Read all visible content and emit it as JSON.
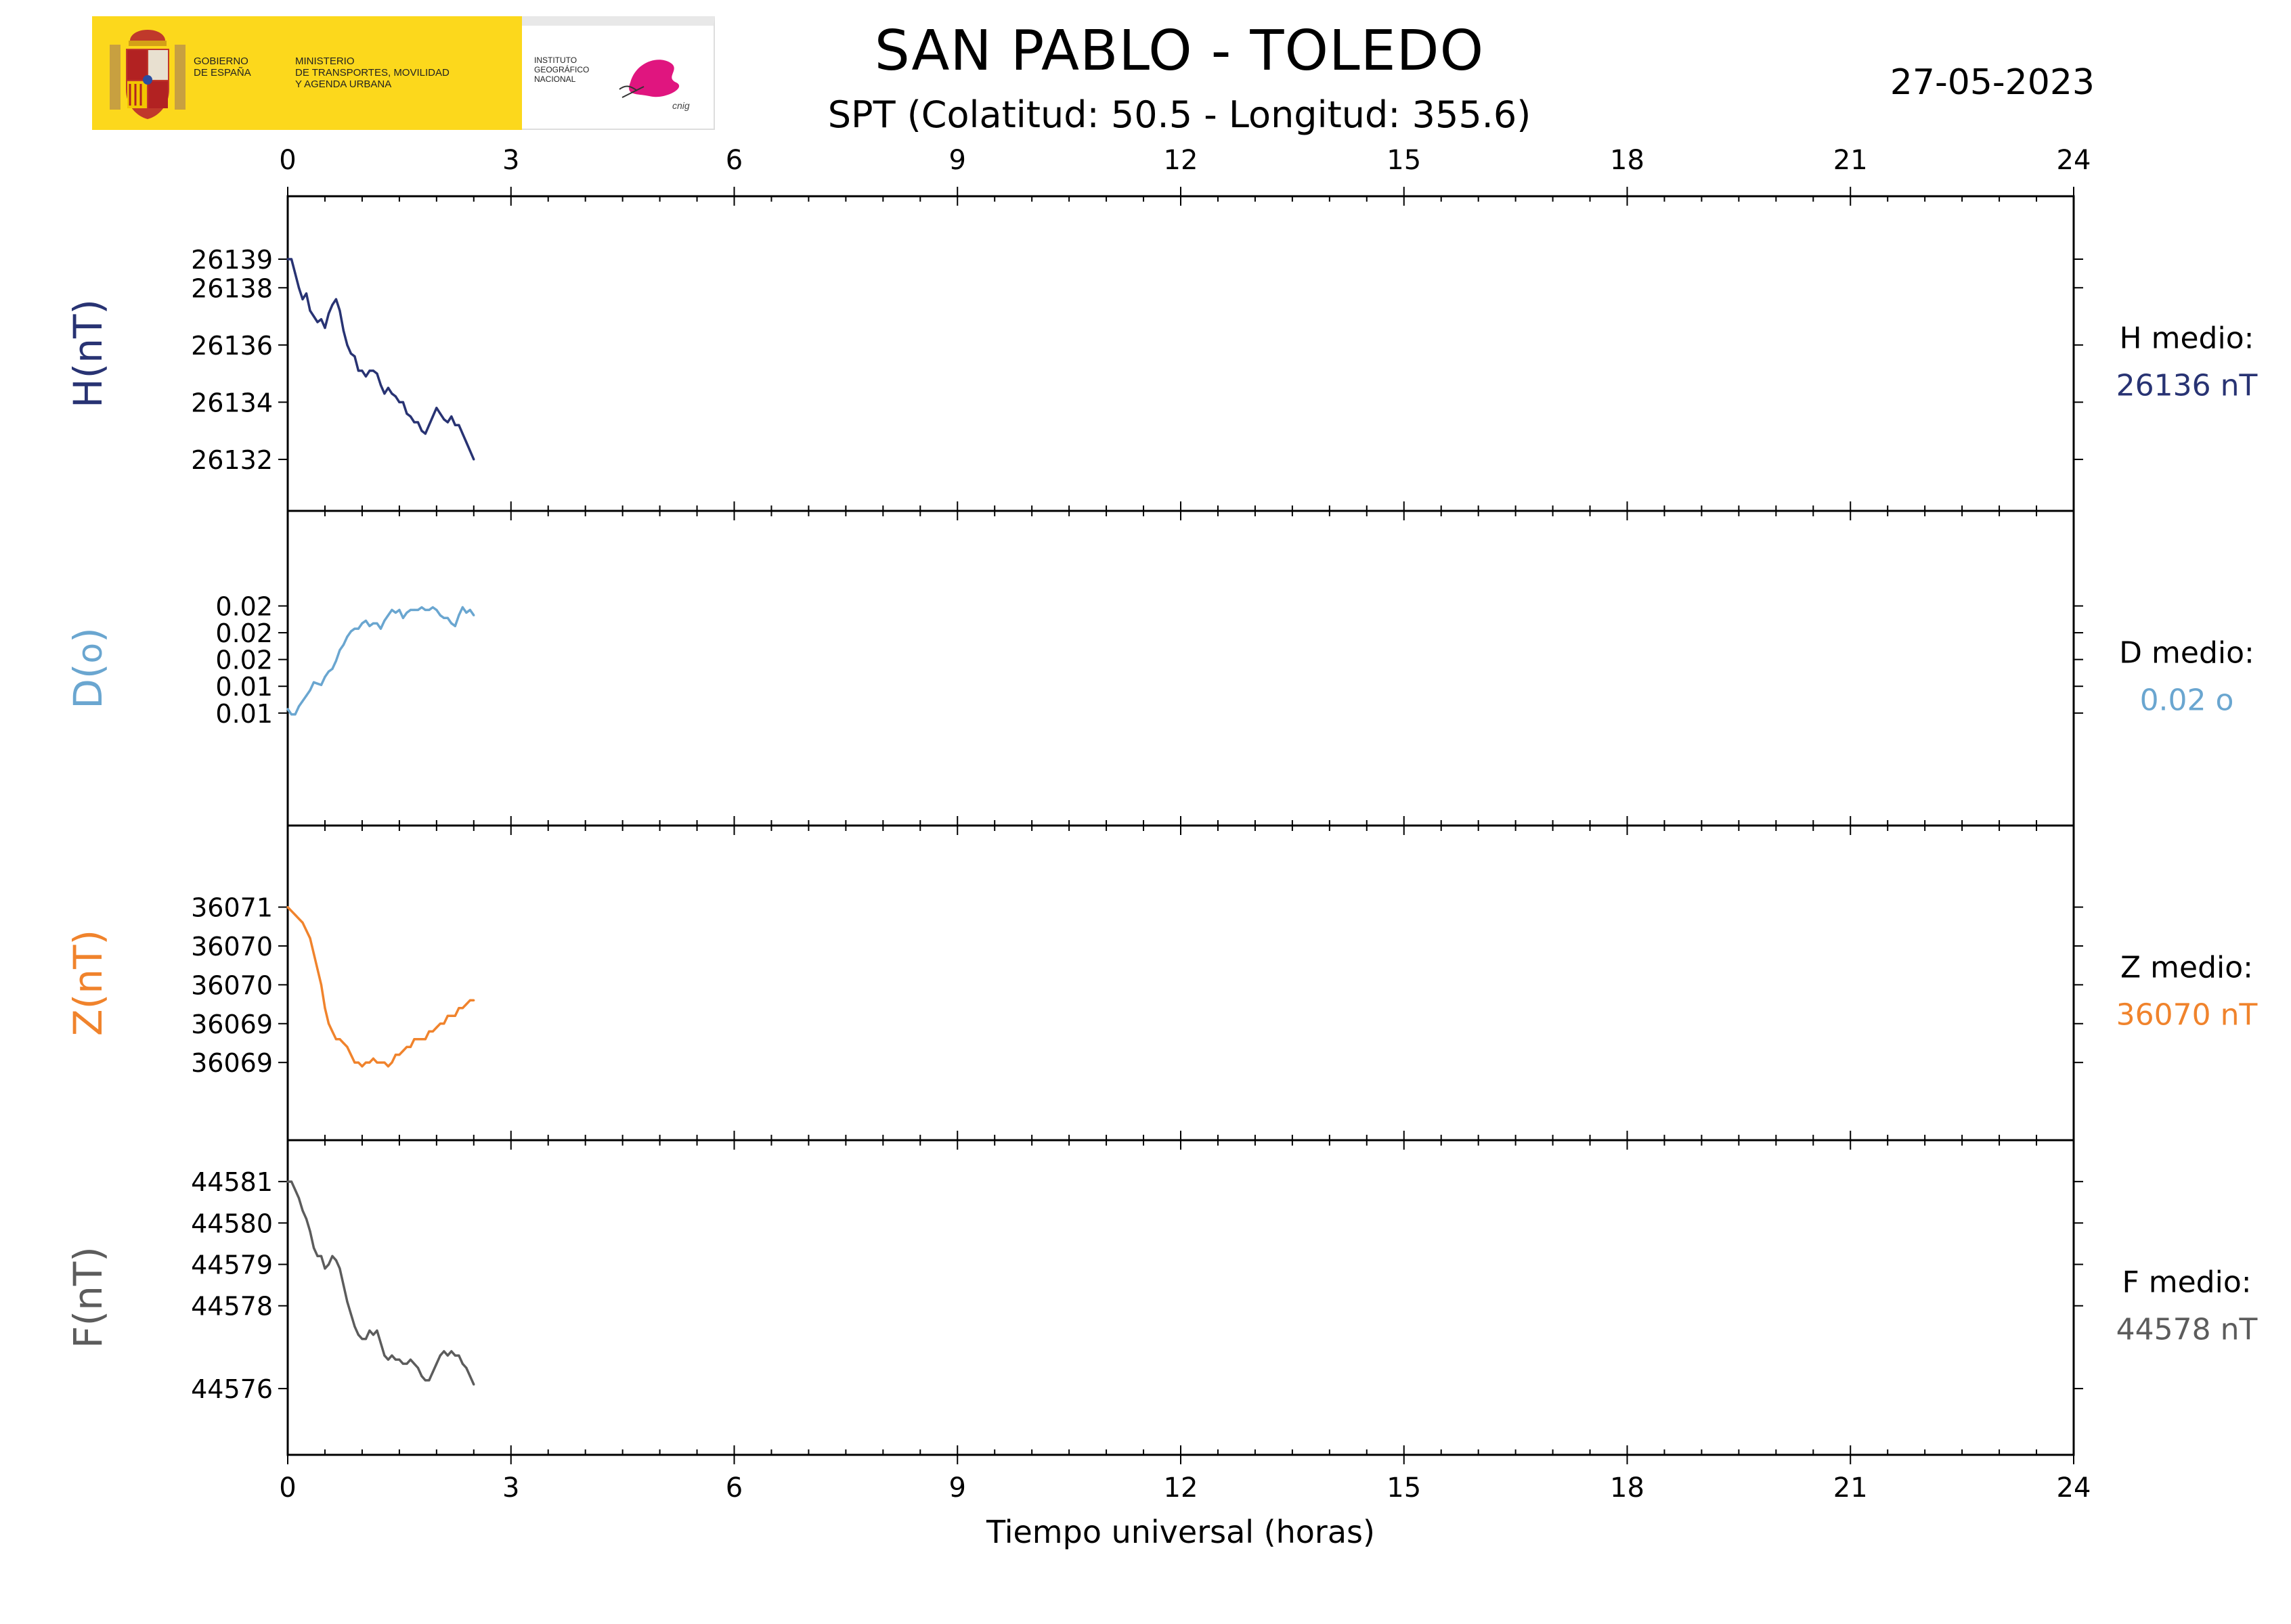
{
  "header": {
    "title": "SAN PABLO - TOLEDO",
    "subtitle": "SPT (Colatitud: 50.5 - Longitud: 355.6)",
    "date": "27-05-2023"
  },
  "logo": {
    "gov_text": "GOBIERNO\nDE ESPAÑA",
    "ministry_text": "MINISTERIO\nDE TRANSPORTES, MOVILIDAD\nY AGENDA URBANA",
    "institute_text": "INSTITUTO\nGEOGRÁFICO\nNACIONAL",
    "brand_text": "cnig"
  },
  "chart_data": {
    "type": "line",
    "x_axis": {
      "label": "Tiempo universal (horas)",
      "range": [
        0,
        24
      ],
      "ticks": [
        0,
        3,
        6,
        9,
        12,
        15,
        18,
        21,
        24
      ],
      "tick_labels": [
        "0",
        "3",
        "6",
        "9",
        "12",
        "15",
        "18",
        "21",
        "24"
      ]
    },
    "x": [
      0,
      0.05,
      0.1,
      0.15,
      0.2,
      0.25,
      0.3,
      0.35,
      0.4,
      0.45,
      0.5,
      0.55,
      0.6,
      0.65,
      0.7,
      0.75,
      0.8,
      0.85,
      0.9,
      0.95,
      1.0,
      1.05,
      1.1,
      1.15,
      1.2,
      1.25,
      1.3,
      1.35,
      1.4,
      1.45,
      1.5,
      1.55,
      1.6,
      1.65,
      1.7,
      1.75,
      1.8,
      1.85,
      1.9,
      1.95,
      2.0,
      2.05,
      2.1,
      2.15,
      2.2,
      2.25,
      2.3,
      2.35,
      2.4,
      2.45,
      2.5
    ],
    "panels": [
      {
        "id": "H",
        "ylabel": "H(nT)",
        "color": "#283373",
        "ylim": [
          26130.2,
          26141.2
        ],
        "yticks": [
          26132,
          26134,
          26136,
          26138,
          26139
        ],
        "ytick_labels": [
          "26132",
          "26134",
          "26136",
          "26138",
          "26139"
        ],
        "mean_label": "H medio:",
        "mean_value": "26136 nT",
        "values": [
          26139.0,
          26139.0,
          26138.5,
          26138.0,
          26137.6,
          26137.8,
          26137.2,
          26137.0,
          26136.8,
          26136.9,
          26136.6,
          26137.1,
          26137.4,
          26137.6,
          26137.2,
          26136.5,
          26136.0,
          26135.7,
          26135.6,
          26135.1,
          26135.1,
          26134.9,
          26135.1,
          26135.1,
          26135.0,
          26134.6,
          26134.3,
          26134.5,
          26134.3,
          26134.2,
          26134.0,
          26134.0,
          26133.6,
          26133.5,
          26133.3,
          26133.3,
          26133.0,
          26132.9,
          26133.2,
          26133.5,
          26133.8,
          26133.6,
          26133.4,
          26133.3,
          26133.5,
          26133.2,
          26133.2,
          26132.9,
          26132.6,
          26132.3,
          26132.0
        ]
      },
      {
        "id": "D",
        "ylabel": "D(o)",
        "color": "#6aa6d0",
        "ylim": [
          0.0035,
          0.027
        ],
        "yticks": [
          0.0119,
          0.0139,
          0.0159,
          0.0179,
          0.0199
        ],
        "ytick_labels": [
          "0.01",
          "0.01",
          "0.02",
          "0.02",
          "0.02"
        ],
        "mean_label": "D medio:",
        "mean_value": "0.02 o",
        "values": [
          0.0122,
          0.0118,
          0.0118,
          0.0124,
          0.0128,
          0.0132,
          0.0136,
          0.0142,
          0.0141,
          0.014,
          0.0146,
          0.015,
          0.0152,
          0.0158,
          0.0166,
          0.017,
          0.0176,
          0.018,
          0.0182,
          0.0182,
          0.0186,
          0.0188,
          0.0184,
          0.0186,
          0.0186,
          0.0182,
          0.0188,
          0.0192,
          0.0196,
          0.0194,
          0.0196,
          0.019,
          0.0194,
          0.0196,
          0.0196,
          0.0196,
          0.0198,
          0.0196,
          0.0196,
          0.0198,
          0.0196,
          0.0192,
          0.019,
          0.019,
          0.0186,
          0.0184,
          0.0192,
          0.0198,
          0.0194,
          0.0196,
          0.0192
        ]
      },
      {
        "id": "Z",
        "ylabel": "Z(nT)",
        "color": "#f0832c",
        "ylim": [
          36067.6,
          36071.65
        ],
        "yticks": [
          36068.6,
          36069.1,
          36069.6,
          36070.1,
          36070.6
        ],
        "ytick_labels": [
          "36069",
          "36069",
          "36070",
          "36070",
          "36071"
        ],
        "mean_label": "Z medio:",
        "mean_value": "36070 nT",
        "values": [
          36070.6,
          36070.55,
          36070.5,
          36070.45,
          36070.4,
          36070.3,
          36070.2,
          36070.0,
          36069.8,
          36069.6,
          36069.3,
          36069.1,
          36069.0,
          36068.9,
          36068.9,
          36068.85,
          36068.8,
          36068.7,
          36068.6,
          36068.6,
          36068.55,
          36068.6,
          36068.6,
          36068.65,
          36068.6,
          36068.6,
          36068.6,
          36068.55,
          36068.6,
          36068.7,
          36068.7,
          36068.75,
          36068.8,
          36068.8,
          36068.9,
          36068.9,
          36068.9,
          36068.9,
          36069.0,
          36069.0,
          36069.05,
          36069.1,
          36069.1,
          36069.2,
          36069.2,
          36069.2,
          36069.3,
          36069.3,
          36069.35,
          36069.4,
          36069.4
        ]
      },
      {
        "id": "F",
        "ylabel": "F(nT)",
        "color": "#5c5c5c",
        "ylim": [
          44574.4,
          44582.0
        ],
        "yticks": [
          44576,
          44578,
          44579,
          44580,
          44581
        ],
        "ytick_labels": [
          "44576",
          "44578",
          "44579",
          "44580",
          "44581"
        ],
        "mean_label": "F medio:",
        "mean_value": "44578 nT",
        "values": [
          44581.0,
          44581.0,
          44580.8,
          44580.6,
          44580.3,
          44580.1,
          44579.8,
          44579.4,
          44579.2,
          44579.2,
          44578.9,
          44579.0,
          44579.2,
          44579.1,
          44578.9,
          44578.5,
          44578.1,
          44577.8,
          44577.5,
          44577.3,
          44577.2,
          44577.2,
          44577.4,
          44577.3,
          44577.4,
          44577.1,
          44576.8,
          44576.7,
          44576.8,
          44576.7,
          44576.7,
          44576.6,
          44576.6,
          44576.7,
          44576.6,
          44576.5,
          44576.3,
          44576.2,
          44576.2,
          44576.4,
          44576.6,
          44576.8,
          44576.9,
          44576.8,
          44576.9,
          44576.8,
          44576.8,
          44576.6,
          44576.5,
          44576.3,
          44576.1
        ]
      }
    ]
  }
}
